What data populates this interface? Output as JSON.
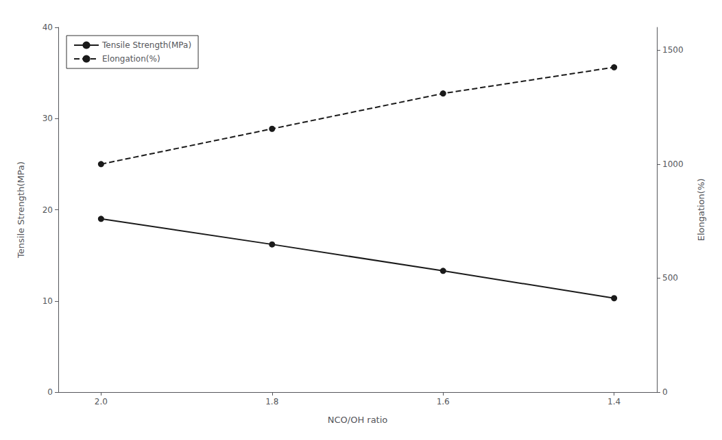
{
  "chart_data": {
    "type": "line",
    "xlabel": "NCO/OH ratio",
    "ylabel": "Tensile Strength(MPa)",
    "y2label": "Elongation(%)",
    "x": [
      2.0,
      1.8,
      1.6,
      1.4
    ],
    "series": [
      {
        "name": "Tensile Strength(MPa)",
        "color": "#1a1a1a",
        "values": [
          19.0,
          16.2,
          13.3,
          10.3
        ],
        "marker": "circle",
        "line_style": "solid"
      },
      {
        "name": "Elongation(%)",
        "color": "#1a1a1a",
        "values": [
          1000,
          1155,
          1310,
          1425
        ],
        "marker": "circle",
        "line_style": "dashed",
        "axis": "y2"
      }
    ],
    "xlim": [
      2.05,
      1.35
    ],
    "xticks": [
      {
        "value": 2.0,
        "label": "2.0"
      },
      1.8,
      1.6,
      1.4
    ],
    "ylim": [
      0,
      40
    ],
    "yticks": [
      0,
      10,
      20,
      30,
      40
    ],
    "y2lim": [
      0,
      1600
    ],
    "y2ticks": [
      0,
      500,
      1000,
      1500
    ],
    "grid": false,
    "legend": "upper left"
  }
}
